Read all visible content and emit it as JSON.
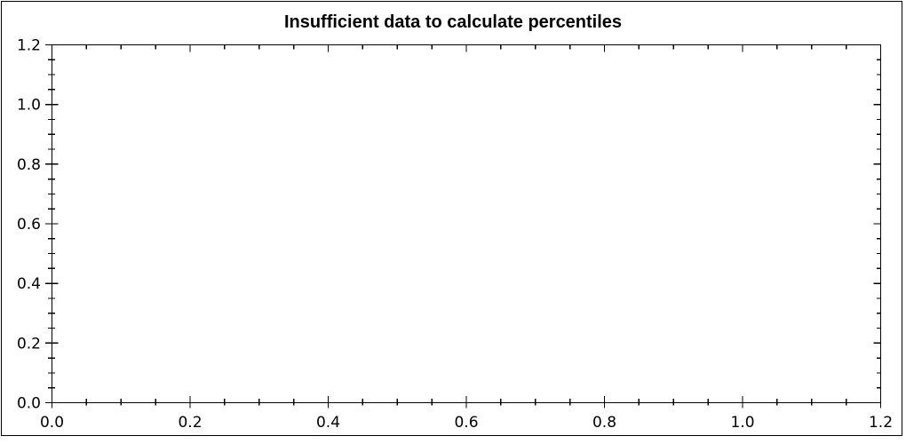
{
  "window": {
    "background_color": "#ffffff",
    "border_color": "#000000"
  },
  "chart_data": {
    "type": "scatter",
    "title": "Insufficient data to calculate percentiles",
    "series": [],
    "x": [],
    "y": [],
    "xlabel": "",
    "ylabel": "",
    "xlim": [
      0.0,
      1.2
    ],
    "ylim": [
      0.0,
      1.2
    ],
    "x_major_tick_step": 0.2,
    "x_minor_tick_step": 0.05,
    "y_major_tick_step": 0.2,
    "y_minor_tick_step": 0.05,
    "x_tick_labels": [
      "0.0",
      "0.2",
      "0.4",
      "0.6",
      "0.8",
      "1.0",
      "1.2"
    ],
    "y_tick_labels": [
      "0.0",
      "0.2",
      "0.4",
      "0.6",
      "0.8",
      "1.0",
      "1.2"
    ],
    "grid": false,
    "legend": null,
    "frame": "full-box-with-mirrored-inward-ticks",
    "axis_color": "#000000",
    "text_color": "#000000"
  }
}
